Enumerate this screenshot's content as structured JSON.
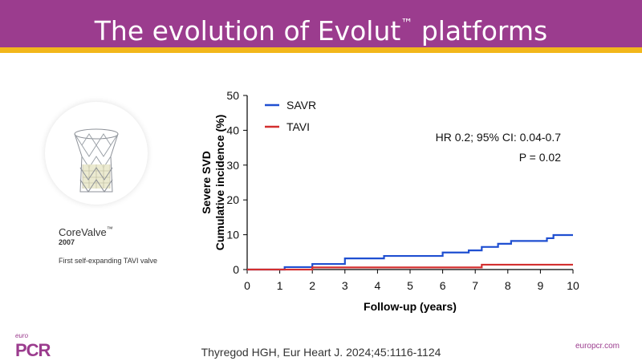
{
  "header": {
    "title": "The evolution of Evolut",
    "title_tm": "™",
    "title_end": " platforms"
  },
  "product": {
    "name": "CoreValve",
    "name_tm": "™",
    "year": "2007",
    "description": "First self-expanding TAVI valve"
  },
  "citation": "Thyregod HGH, Eur Heart J. 2024;45:1116-1124",
  "footer": {
    "logo_top": "euro",
    "logo_main": "PCR",
    "website": "europcr.com"
  },
  "colors": {
    "accent": "#9b3c8e",
    "gold": "#f2b71b",
    "savr": "#1f4fd1",
    "tavi": "#d32f2f"
  },
  "chart_data": {
    "type": "line",
    "step": true,
    "ylabel_line1": "Severe SVD",
    "ylabel_line2": "Cumulative incidence (%)",
    "xlabel": "Follow-up (years)",
    "xlim": [
      0,
      10
    ],
    "ylim": [
      0,
      50
    ],
    "xticks": [
      0,
      1,
      2,
      3,
      4,
      5,
      6,
      7,
      8,
      9,
      10
    ],
    "yticks": [
      0,
      10,
      20,
      30,
      40,
      50
    ],
    "legend_position": "top-left",
    "annotations": [
      "HR 0.2; 95% CI: 0.04-0.7",
      "P = 0.02"
    ],
    "series": [
      {
        "name": "SAVR",
        "color": "#1f4fd1",
        "x": [
          0,
          1.15,
          2.0,
          3.0,
          4.2,
          6.0,
          6.8,
          7.2,
          7.7,
          8.1,
          9.2,
          9.4,
          10.0
        ],
        "y": [
          0,
          0.7,
          1.6,
          3.2,
          3.9,
          4.9,
          5.5,
          6.5,
          7.4,
          8.2,
          9.0,
          9.9,
          9.9
        ]
      },
      {
        "name": "TAVI",
        "color": "#d32f2f",
        "x": [
          0,
          2.0,
          7.2,
          10.0
        ],
        "y": [
          0,
          0.6,
          1.4,
          1.4
        ]
      }
    ]
  }
}
